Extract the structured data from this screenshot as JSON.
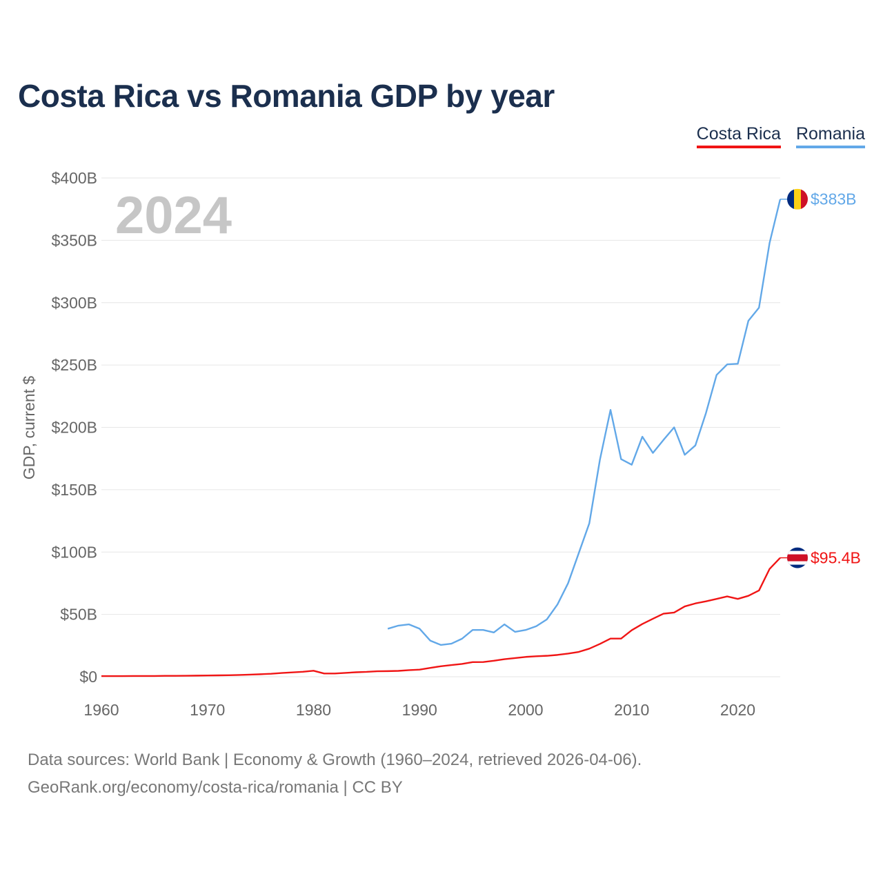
{
  "title": "Costa Rica vs Romania GDP by year",
  "legend": {
    "costa_rica": "Costa Rica",
    "romania": "Romania"
  },
  "year_label": "2024",
  "footer": {
    "line1": "Data sources: World Bank | Economy & Growth (1960–2024, retrieved 2026-04-06).",
    "line2": "GeoRank.org/economy/costa-rica/romania | CC BY"
  },
  "colors": {
    "costa_rica": "#f01515",
    "romania": "#62a8e8",
    "title": "#1b2f4e",
    "grid": "#e6e6e6",
    "axis_text": "#666666",
    "year": "#c6c6c6"
  },
  "chart_data": {
    "type": "line",
    "title": "Costa Rica vs Romania GDP by year",
    "xlabel": "",
    "ylabel": "GDP, current $",
    "xlim": [
      1960,
      2024
    ],
    "ylim": [
      0,
      400
    ],
    "unit": "billion USD",
    "x_ticks": [
      1960,
      1970,
      1980,
      1990,
      2000,
      2010,
      2020
    ],
    "x_tick_labels": [
      "1960",
      "1970",
      "1980",
      "1990",
      "2000",
      "2010",
      "2020"
    ],
    "y_ticks": [
      0,
      50,
      100,
      150,
      200,
      250,
      300,
      350,
      400
    ],
    "y_tick_labels": [
      "$0",
      "$50B",
      "$100B",
      "$150B",
      "$200B",
      "$250B",
      "$300B",
      "$350B",
      "$400B"
    ],
    "series": [
      {
        "name": "Romania",
        "end_label": "$383B",
        "x": [
          1987,
          1988,
          1989,
          1990,
          1991,
          1992,
          1993,
          1994,
          1995,
          1996,
          1997,
          1998,
          1999,
          2000,
          2001,
          2002,
          2003,
          2004,
          2005,
          2006,
          2007,
          2008,
          2009,
          2010,
          2011,
          2012,
          2013,
          2014,
          2015,
          2016,
          2017,
          2018,
          2019,
          2020,
          2021,
          2022,
          2023,
          2024
        ],
        "values": [
          38.5,
          41,
          42,
          38.5,
          29,
          25.5,
          26.5,
          30.5,
          37.5,
          37.5,
          35.5,
          42,
          36,
          37.5,
          40.5,
          46,
          58,
          75,
          99,
          123,
          174,
          214,
          174.5,
          170,
          192.5,
          179.5,
          190,
          200,
          178,
          185.5,
          211.5,
          242,
          250.5,
          251,
          285.5,
          296,
          348,
          383
        ]
      },
      {
        "name": "Costa Rica",
        "end_label": "$95.4B",
        "x": [
          1960,
          1961,
          1962,
          1963,
          1964,
          1965,
          1966,
          1967,
          1968,
          1969,
          1970,
          1971,
          1972,
          1973,
          1974,
          1975,
          1976,
          1977,
          1978,
          1979,
          1980,
          1981,
          1982,
          1983,
          1984,
          1985,
          1986,
          1987,
          1988,
          1989,
          1990,
          1991,
          1992,
          1993,
          1994,
          1995,
          1996,
          1997,
          1998,
          1999,
          2000,
          2001,
          2002,
          2003,
          2004,
          2005,
          2006,
          2007,
          2008,
          2009,
          2010,
          2011,
          2012,
          2013,
          2014,
          2015,
          2016,
          2017,
          2018,
          2019,
          2020,
          2021,
          2022,
          2023,
          2024
        ],
        "values": [
          0.5,
          0.5,
          0.5,
          0.6,
          0.6,
          0.6,
          0.7,
          0.7,
          0.8,
          0.9,
          1,
          1.1,
          1.2,
          1.4,
          1.7,
          2,
          2.4,
          3,
          3.5,
          4,
          4.8,
          2.6,
          2.6,
          3.1,
          3.6,
          3.9,
          4.4,
          4.5,
          4.7,
          5.3,
          5.7,
          7.1,
          8.4,
          9.4,
          10.3,
          11.7,
          11.8,
          12.8,
          14.1,
          15,
          15.9,
          16.4,
          16.8,
          17.5,
          18.6,
          19.9,
          22.5,
          26.3,
          30.6,
          30.6,
          37.3,
          42.3,
          46.5,
          50.6,
          51.5,
          56.4,
          58.8,
          60.5,
          62.4,
          64.4,
          62.4,
          64.9,
          69.2,
          86.5,
          95.4
        ]
      }
    ]
  }
}
